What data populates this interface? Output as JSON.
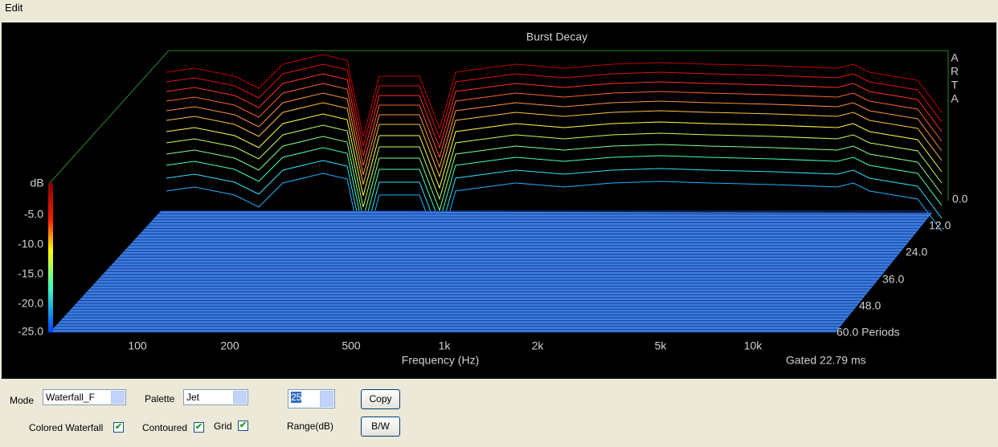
{
  "menu": {
    "items": [
      "Edit"
    ]
  },
  "plot": {
    "title": "Burst Decay",
    "brand": [
      "A",
      "R",
      "T",
      "A"
    ],
    "db_axis_title": "dB",
    "db_ticks": [
      "-5.0",
      "-10.0",
      "-15.0",
      "-20.0",
      "-25.0"
    ],
    "frequency_ticks": [
      "100",
      "200",
      "500",
      "1k",
      "2k",
      "5k",
      "10k"
    ],
    "x_axis_title": "Frequency (Hz)",
    "gate_note": "Gated 22.79 ms",
    "period_ticks": [
      "0.0",
      "12.0",
      "24.0",
      "36.0",
      "48.0",
      "60.0 Periods"
    ]
  },
  "controls": {
    "mode_label": "Mode",
    "mode_value": "Waterfall_F",
    "palette_label": "Palette",
    "palette_value": "Jet",
    "range_value": "25",
    "range_label": "Range(dB)",
    "copy_button": "Copy",
    "bw_button": "B/W",
    "colored_waterfall": "Colored Waterfall",
    "contoured": "Contoured",
    "grid": "Grid"
  }
}
